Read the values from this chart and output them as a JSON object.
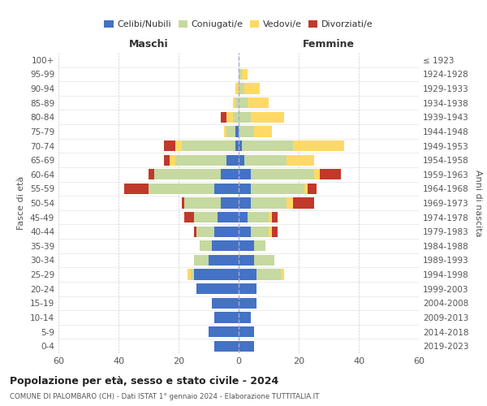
{
  "age_groups": [
    "0-4",
    "5-9",
    "10-14",
    "15-19",
    "20-24",
    "25-29",
    "30-34",
    "35-39",
    "40-44",
    "45-49",
    "50-54",
    "55-59",
    "60-64",
    "65-69",
    "70-74",
    "75-79",
    "80-84",
    "85-89",
    "90-94",
    "95-99",
    "100+"
  ],
  "birth_years": [
    "2019-2023",
    "2014-2018",
    "2009-2013",
    "2004-2008",
    "1999-2003",
    "1994-1998",
    "1989-1993",
    "1984-1988",
    "1979-1983",
    "1974-1978",
    "1969-1973",
    "1964-1968",
    "1959-1963",
    "1954-1958",
    "1949-1953",
    "1944-1948",
    "1939-1943",
    "1934-1938",
    "1929-1933",
    "1924-1928",
    "≤ 1923"
  ],
  "maschi": {
    "celibi": [
      8,
      10,
      8,
      9,
      14,
      15,
      10,
      9,
      8,
      7,
      6,
      8,
      6,
      4,
      1,
      1,
      0,
      0,
      0,
      0,
      0
    ],
    "coniugati": [
      0,
      0,
      0,
      0,
      0,
      1,
      5,
      4,
      6,
      8,
      12,
      22,
      22,
      17,
      18,
      3,
      2,
      1,
      0,
      0,
      0
    ],
    "vedovi": [
      0,
      0,
      0,
      0,
      0,
      1,
      0,
      0,
      0,
      0,
      0,
      0,
      0,
      2,
      2,
      1,
      2,
      1,
      1,
      0,
      0
    ],
    "divorziati": [
      0,
      0,
      0,
      0,
      0,
      0,
      0,
      0,
      1,
      3,
      1,
      8,
      2,
      2,
      4,
      0,
      2,
      0,
      0,
      0,
      0
    ]
  },
  "femmine": {
    "nubili": [
      5,
      5,
      4,
      6,
      6,
      6,
      5,
      5,
      4,
      3,
      4,
      4,
      4,
      2,
      1,
      0,
      0,
      0,
      0,
      0,
      0
    ],
    "coniugate": [
      0,
      0,
      0,
      0,
      0,
      8,
      7,
      4,
      6,
      7,
      12,
      18,
      21,
      14,
      17,
      5,
      4,
      3,
      2,
      1,
      0
    ],
    "vedove": [
      0,
      0,
      0,
      0,
      0,
      1,
      0,
      0,
      1,
      1,
      2,
      1,
      2,
      9,
      17,
      6,
      11,
      7,
      5,
      2,
      0
    ],
    "divorziate": [
      0,
      0,
      0,
      0,
      0,
      0,
      0,
      0,
      2,
      2,
      7,
      3,
      7,
      0,
      0,
      0,
      0,
      0,
      0,
      0,
      0
    ]
  },
  "colors": {
    "celibi": "#4472C4",
    "coniugati": "#C5D9A0",
    "vedovi": "#FFD966",
    "divorziati": "#C0392B"
  },
  "title": "Popolazione per età, sesso e stato civile - 2024",
  "subtitle": "COMUNE DI PALOMBARO (CH) - Dati ISTAT 1° gennaio 2024 - Elaborazione TUTTITALIA.IT",
  "xlabel_maschi": "Maschi",
  "xlabel_femmine": "Femmine",
  "ylabel_left": "Fasce di età",
  "ylabel_right": "Anni di nascita",
  "xlim": 60,
  "bg_color": "#ffffff",
  "grid_color": "#cccccc"
}
